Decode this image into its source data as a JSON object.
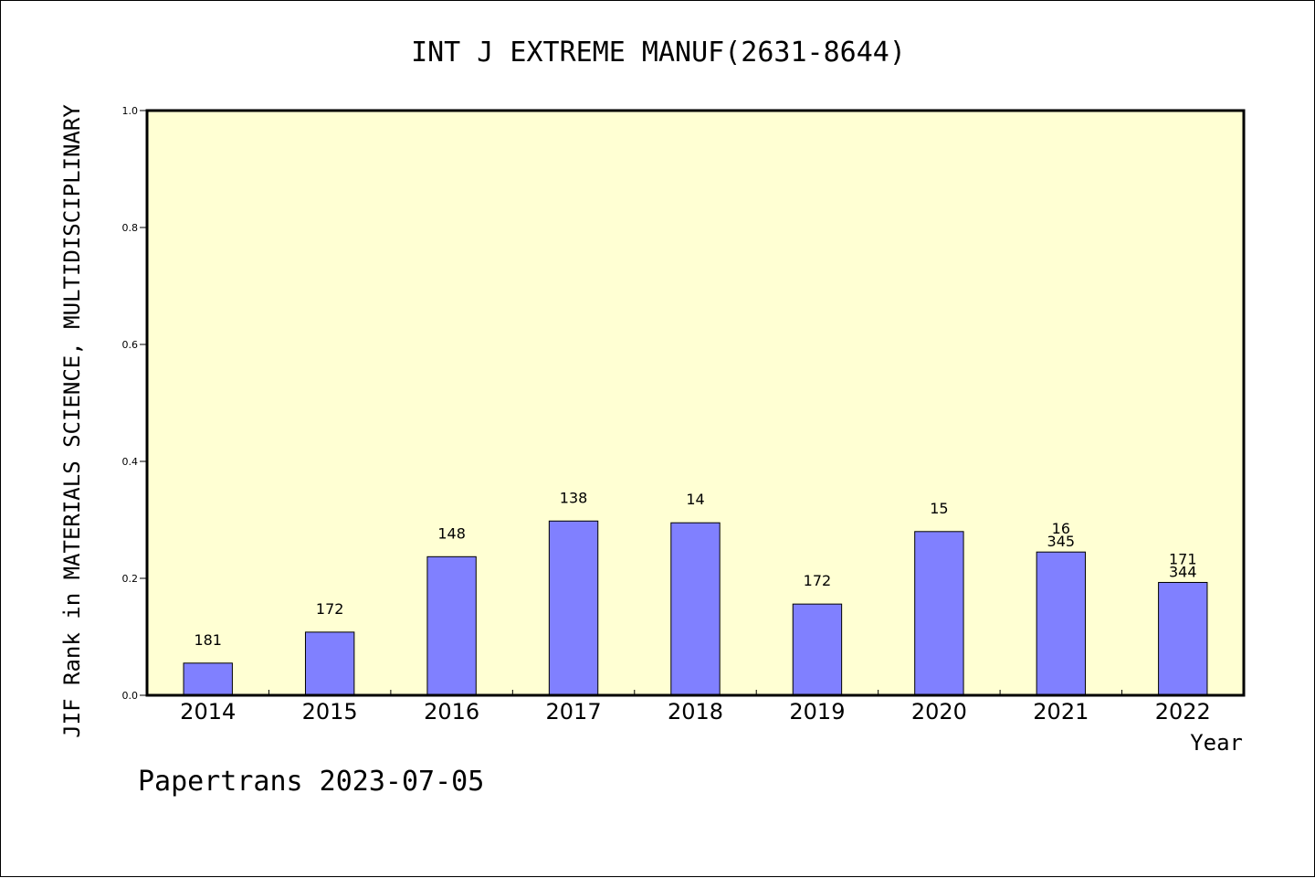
{
  "chart_data": {
    "type": "bar",
    "title": "INT J EXTREME MANUF(2631-8644)",
    "xlabel": "Year",
    "ylabel": "JIF Rank in MATERIALS SCIENCE, MULTIDISCIPLINARY",
    "ylim": [
      0,
      1.0
    ],
    "yticks": [
      "0.0",
      "0.2",
      "0.4",
      "0.6",
      "0.8",
      "1.0"
    ],
    "categories": [
      "2014",
      "2015",
      "2016",
      "2017",
      "2018",
      "2019",
      "2020",
      "2021",
      "2022"
    ],
    "values": [
      0.055,
      0.108,
      0.237,
      0.298,
      0.295,
      0.156,
      0.28,
      0.245,
      0.193
    ],
    "bar_labels": [
      [
        "181"
      ],
      [
        "172"
      ],
      [
        "148"
      ],
      [
        "138"
      ],
      [
        "14"
      ],
      [
        "172"
      ],
      [
        "15"
      ],
      [
        "16",
        "345"
      ],
      [
        "171",
        "344"
      ]
    ],
    "grid": false,
    "plot_background": "#ffffd3",
    "bar_color": "#8080ff"
  },
  "footer": {
    "text": "Papertrans 2023-07-05"
  }
}
